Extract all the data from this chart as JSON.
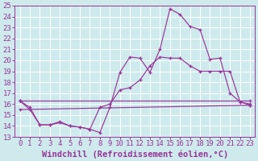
{
  "xlabel": "Windchill (Refroidissement éolien,°C)",
  "xlim": [
    -0.5,
    23.5
  ],
  "ylim": [
    13,
    25
  ],
  "xticks": [
    0,
    1,
    2,
    3,
    4,
    5,
    6,
    7,
    8,
    9,
    10,
    11,
    12,
    13,
    14,
    15,
    16,
    17,
    18,
    19,
    20,
    21,
    22,
    23
  ],
  "yticks": [
    13,
    14,
    15,
    16,
    17,
    18,
    19,
    20,
    21,
    22,
    23,
    24,
    25
  ],
  "bg_color": "#ceeaec",
  "line_color": "#993399",
  "grid_color": "#ffffff",
  "lines": [
    {
      "x": [
        0,
        1,
        2,
        3,
        4,
        5,
        6,
        7,
        8,
        9,
        10,
        11,
        12,
        13,
        14,
        15,
        16,
        17,
        18,
        19,
        20,
        21,
        22,
        23
      ],
      "y": [
        16.3,
        15.7,
        14.1,
        14.1,
        14.3,
        14.0,
        13.9,
        13.7,
        13.4,
        15.7,
        18.9,
        20.3,
        20.2,
        18.9,
        21.0,
        24.7,
        24.2,
        23.1,
        22.8,
        20.1,
        20.2,
        17.0,
        16.2,
        16.0
      ]
    },
    {
      "x": [
        0,
        1,
        2,
        3,
        4,
        5,
        6,
        7,
        8,
        9,
        10,
        11,
        12,
        13,
        14,
        15,
        16,
        17,
        18,
        19,
        20,
        21,
        22,
        23
      ],
      "y": [
        16.3,
        15.5,
        14.1,
        14.1,
        14.4,
        14.0,
        13.9,
        13.7,
        15.7,
        16.0,
        17.3,
        17.5,
        18.2,
        19.5,
        20.3,
        20.2,
        20.2,
        19.5,
        19.0,
        19.0,
        19.0,
        19.0,
        16.2,
        15.9
      ]
    },
    {
      "x": [
        0,
        23
      ],
      "y": [
        15.5,
        15.9
      ]
    },
    {
      "x": [
        0,
        23
      ],
      "y": [
        16.3,
        16.3
      ]
    }
  ],
  "font_family": "monospace",
  "tick_fontsize": 6.5,
  "label_fontsize": 7.5
}
